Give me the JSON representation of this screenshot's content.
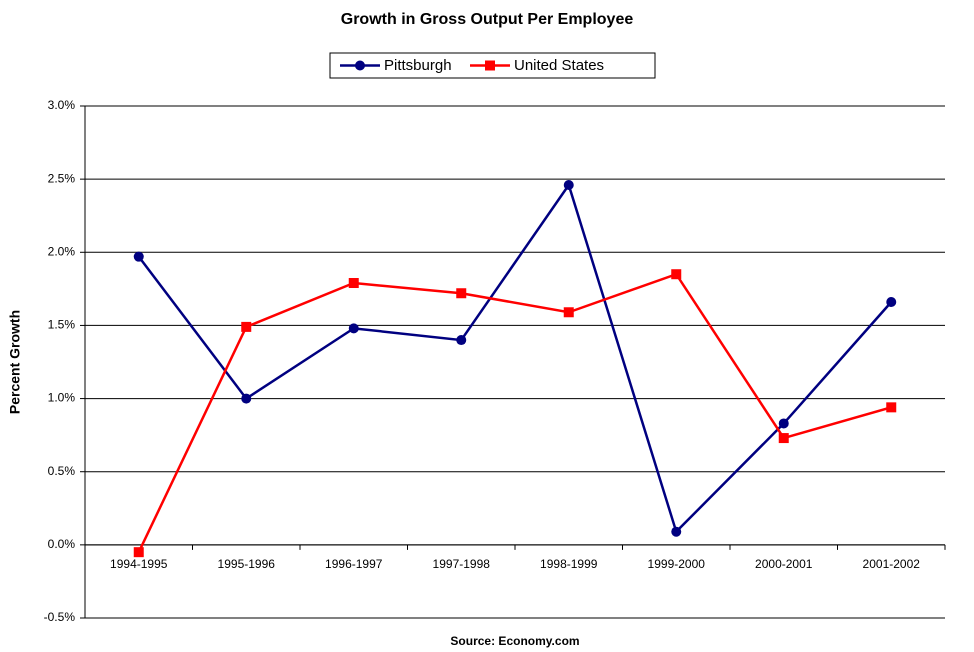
{
  "chart_data": {
    "type": "line",
    "title": "Growth in Gross Output Per Employee",
    "y_label": "Percent Growth",
    "source": "Source:  Economy.com",
    "categories": [
      "1994-1995",
      "1995-1996",
      "1996-1997",
      "1997-1998",
      "1998-1999",
      "1999-2000",
      "2000-2001",
      "2001-2002"
    ],
    "series": [
      {
        "name": "Pittsburgh",
        "color": "#000080",
        "marker": "circle",
        "values": [
          1.97,
          1.0,
          1.48,
          1.4,
          2.46,
          0.09,
          0.83,
          1.66
        ]
      },
      {
        "name": "United States",
        "color": "#ff0000",
        "marker": "square",
        "values": [
          -0.05,
          1.49,
          1.79,
          1.72,
          1.59,
          1.85,
          0.73,
          0.94
        ]
      }
    ],
    "ylim": [
      -0.5,
      3.0
    ],
    "yticks": [
      {
        "value": -0.5,
        "label": "-0.5%"
      },
      {
        "value": 0.0,
        "label": "0.0%"
      },
      {
        "value": 0.5,
        "label": "0.5%"
      },
      {
        "value": 1.0,
        "label": "1.0%"
      },
      {
        "value": 1.5,
        "label": "1.5%"
      },
      {
        "value": 2.0,
        "label": "2.0%"
      },
      {
        "value": 2.5,
        "label": "2.5%"
      },
      {
        "value": 3.0,
        "label": "3.0%"
      }
    ],
    "grid": true,
    "legend": "top"
  }
}
